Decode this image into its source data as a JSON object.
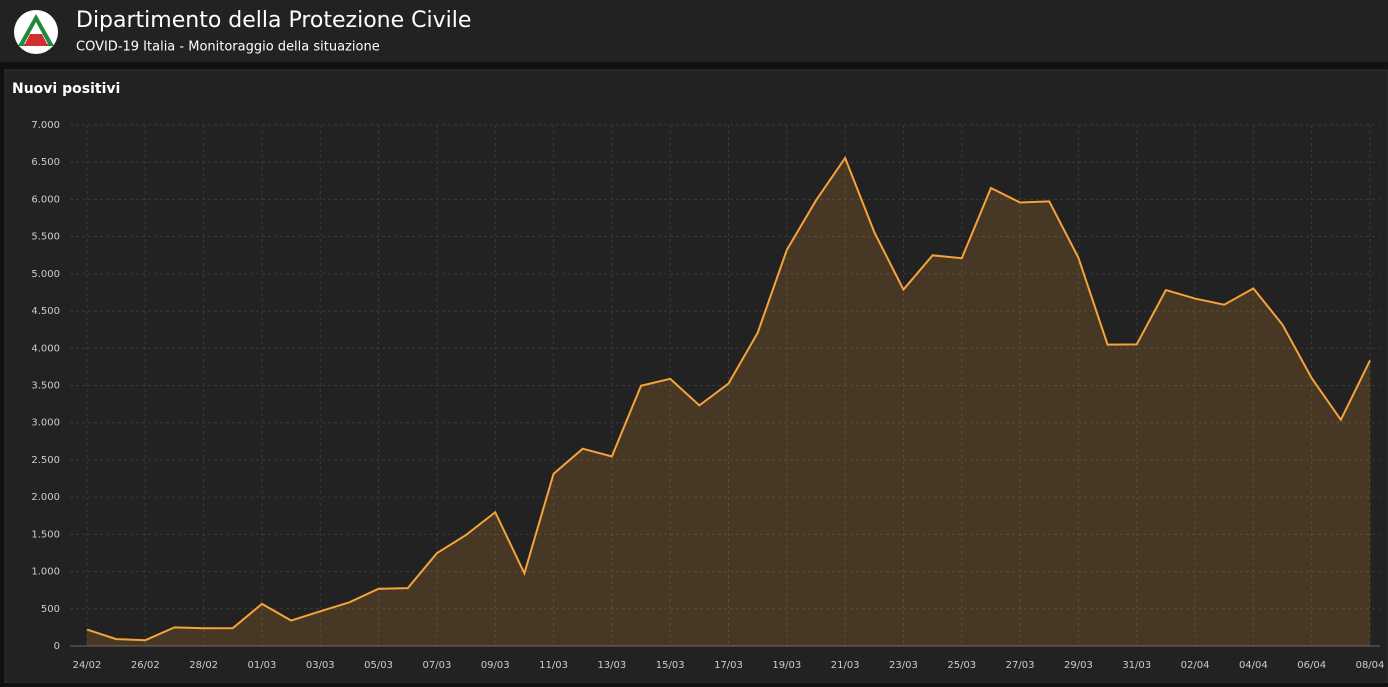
{
  "header": {
    "title": "Dipartimento della Protezione Civile",
    "subtitle": "COVID-19 Italia - Monitoraggio della situazione"
  },
  "chart_data": {
    "type": "area",
    "title": "Nuovi positivi",
    "categories": [
      "24/02",
      null,
      "26/02",
      null,
      "28/02",
      null,
      "01/03",
      null,
      "03/03",
      null,
      "05/03",
      null,
      "07/03",
      null,
      "09/03",
      null,
      "11/03",
      null,
      "13/03",
      null,
      "15/03",
      null,
      "17/03",
      null,
      "19/03",
      null,
      "21/03",
      null,
      "23/03",
      null,
      "25/03",
      null,
      "27/03",
      null,
      "29/03",
      null,
      "31/03",
      null,
      "02/04",
      null,
      "04/04",
      null,
      "06/04",
      null,
      "08/04"
    ],
    "values": [
      221,
      93,
      78,
      250,
      238,
      240,
      566,
      342,
      466,
      587,
      769,
      778,
      1247,
      1492,
      1797,
      977,
      2313,
      2651,
      2547,
      3497,
      3590,
      3233,
      3526,
      4207,
      5322,
      5986,
      6557,
      5560,
      4789,
      5249,
      5210,
      6153,
      5959,
      5974,
      5217,
      4050,
      4053,
      4782,
      4668,
      4585,
      4805,
      4316,
      3599,
      3039,
      3836
    ],
    "color": "#f5a33a",
    "ylim": [
      0,
      7000
    ],
    "yticks": [
      0,
      500,
      {
        "value": 1000,
        "label": "1.000"
      },
      {
        "value": 1500,
        "label": "1.500"
      },
      {
        "value": 2000,
        "label": "2.000"
      },
      {
        "value": 2500,
        "label": "2.500"
      },
      {
        "value": 3000,
        "label": "3.000"
      },
      {
        "value": 3500,
        "label": "3.500"
      },
      {
        "value": 4000,
        "label": "4.000"
      },
      {
        "value": 4500,
        "label": "4.500"
      },
      {
        "value": 5000,
        "label": "5.000"
      },
      {
        "value": 5500,
        "label": "5.500"
      },
      {
        "value": 6000,
        "label": "6.000"
      },
      {
        "value": 6500,
        "label": "6.500"
      },
      {
        "value": 7000,
        "label": "7.000"
      }
    ],
    "grid": true
  }
}
